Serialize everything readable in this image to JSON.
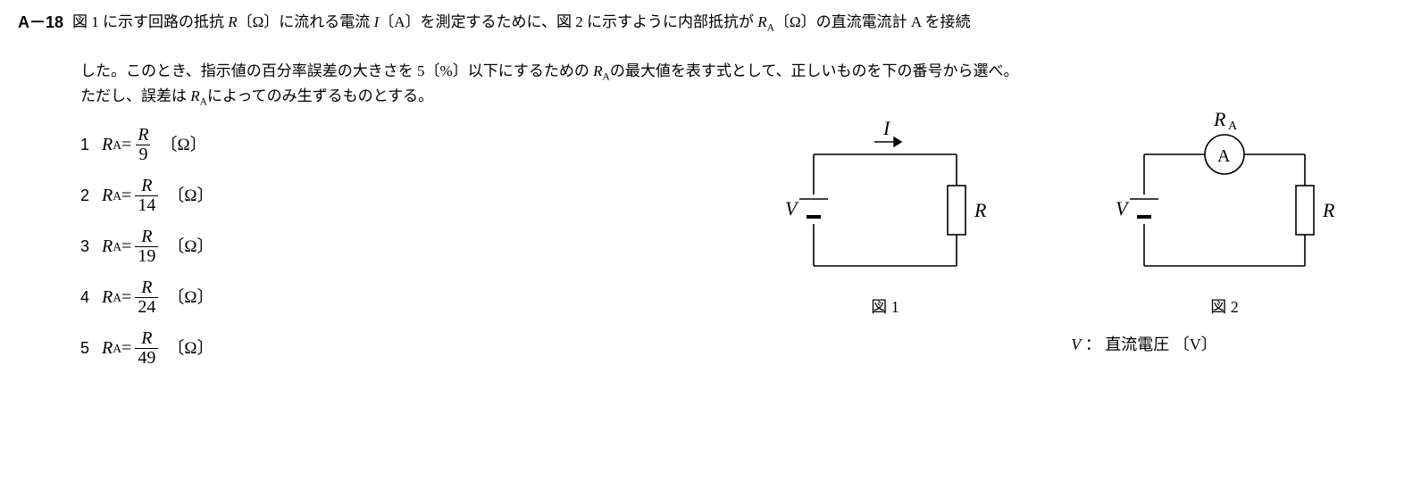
{
  "question_number": "A－18",
  "question_line1_parts": {
    "p1": "図 1 に示す回路の抵抗 ",
    "R": "R",
    "ohm1": "〔Ω〕に流れる電流 ",
    "I": "I",
    "amp": "〔A〕を測定するために、図 2 に示すように内部抵抗が ",
    "RA": "R",
    "Asub": "A",
    "ohm2": "〔Ω〕の直流電流計 A を接続"
  },
  "question_line2_parts": {
    "p1": "した。このとき、指示値の百分率誤差の大きさを 5〔%〕以下にするための ",
    "RA": "R",
    "Asub": "A",
    "p2": "の最大値を表す式として、正しいものを下の番号から選べ。"
  },
  "question_line3_parts": {
    "p1": "ただし、誤差は ",
    "RA": "R",
    "Asub": "A",
    "p2": "によってのみ生ずるものとする。"
  },
  "choices": [
    {
      "n": "1",
      "num": "R",
      "den": "9"
    },
    {
      "n": "2",
      "num": "R",
      "den": "14"
    },
    {
      "n": "3",
      "num": "R",
      "den": "19"
    },
    {
      "n": "4",
      "num": "R",
      "den": "24"
    },
    {
      "n": "5",
      "num": "R",
      "den": "49"
    }
  ],
  "choice_lhs": "R",
  "choice_lhs_sub": "A",
  "choice_eq": " = ",
  "choice_unit": "〔Ω〕",
  "fig1": {
    "caption": "図 1",
    "V": "V",
    "R": "R",
    "I": "I"
  },
  "fig2": {
    "caption": "図 2",
    "V": "V",
    "R": "R",
    "RA": "R",
    "Asub": "A",
    "A": "A"
  },
  "vnote_parts": {
    "V": "V",
    "rest": " ： 直流電圧 〔V〕"
  }
}
